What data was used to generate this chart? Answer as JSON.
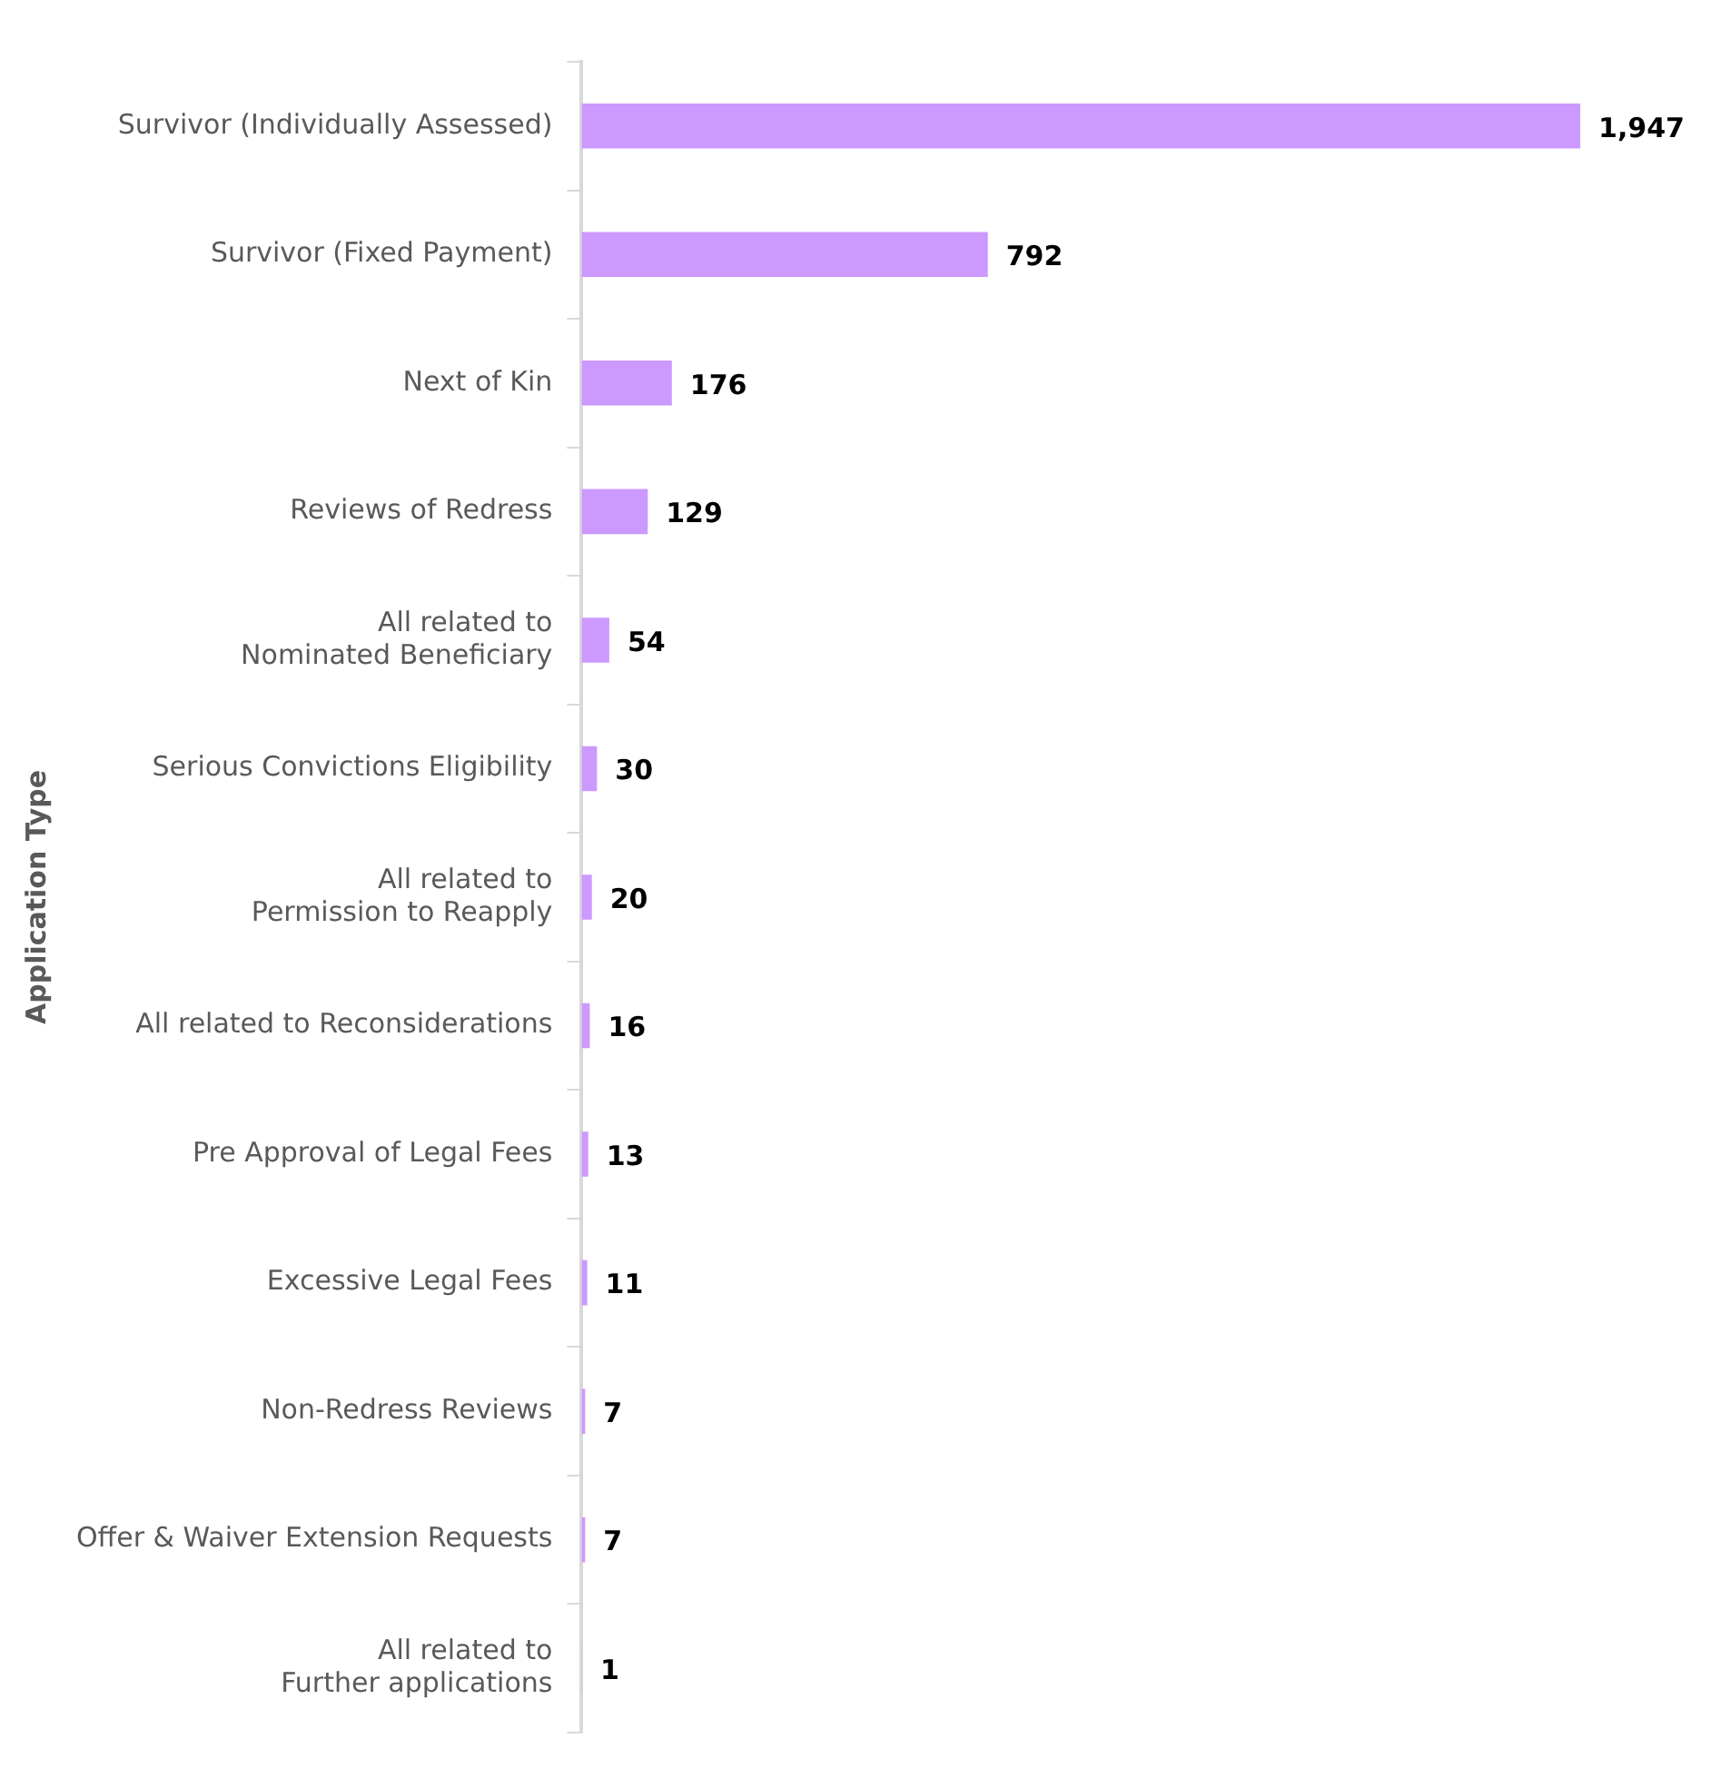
{
  "chart_data": {
    "type": "bar",
    "orientation": "horizontal",
    "ylabel": "Application Type",
    "categories": [
      "Survivor (Individually Assessed)",
      "Survivor (Fixed Payment)",
      "Next of Kin",
      "Reviews of Redress",
      "All related to\nNominated Beneficiary",
      "Serious Convictions Eligibility",
      "All related to\nPermission to Reapply",
      "All related to Reconsiderations",
      "Pre Approval of Legal Fees",
      "Excessive Legal Fees",
      "Non-Redress Reviews",
      "Offer & Waiver Extension Requests",
      "All related to\nFurther applications"
    ],
    "values": [
      1947,
      792,
      176,
      129,
      54,
      30,
      20,
      16,
      13,
      11,
      7,
      7,
      1
    ],
    "value_labels": [
      "1,947",
      "792",
      "176",
      "129",
      "54",
      "30",
      "20",
      "16",
      "13",
      "11",
      "7",
      "7",
      "1"
    ],
    "color": "#cc99ff",
    "legend": false,
    "grid": false
  }
}
